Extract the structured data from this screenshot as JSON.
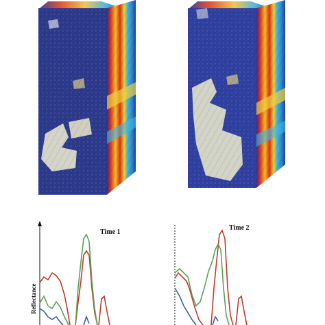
{
  "cubes": [
    {
      "name": "cube-time-1"
    },
    {
      "name": "cube-time-2"
    }
  ],
  "plots": {
    "left_title": "Time 1",
    "right_title": "Time 2",
    "ylabel": "Reflectance"
  },
  "colors": {
    "background": "#ffffff",
    "image_blue": "#2d3a8c",
    "series_red": "#c0392b",
    "series_green": "#5aa05a",
    "series_blue": "#3a5fa8"
  }
}
